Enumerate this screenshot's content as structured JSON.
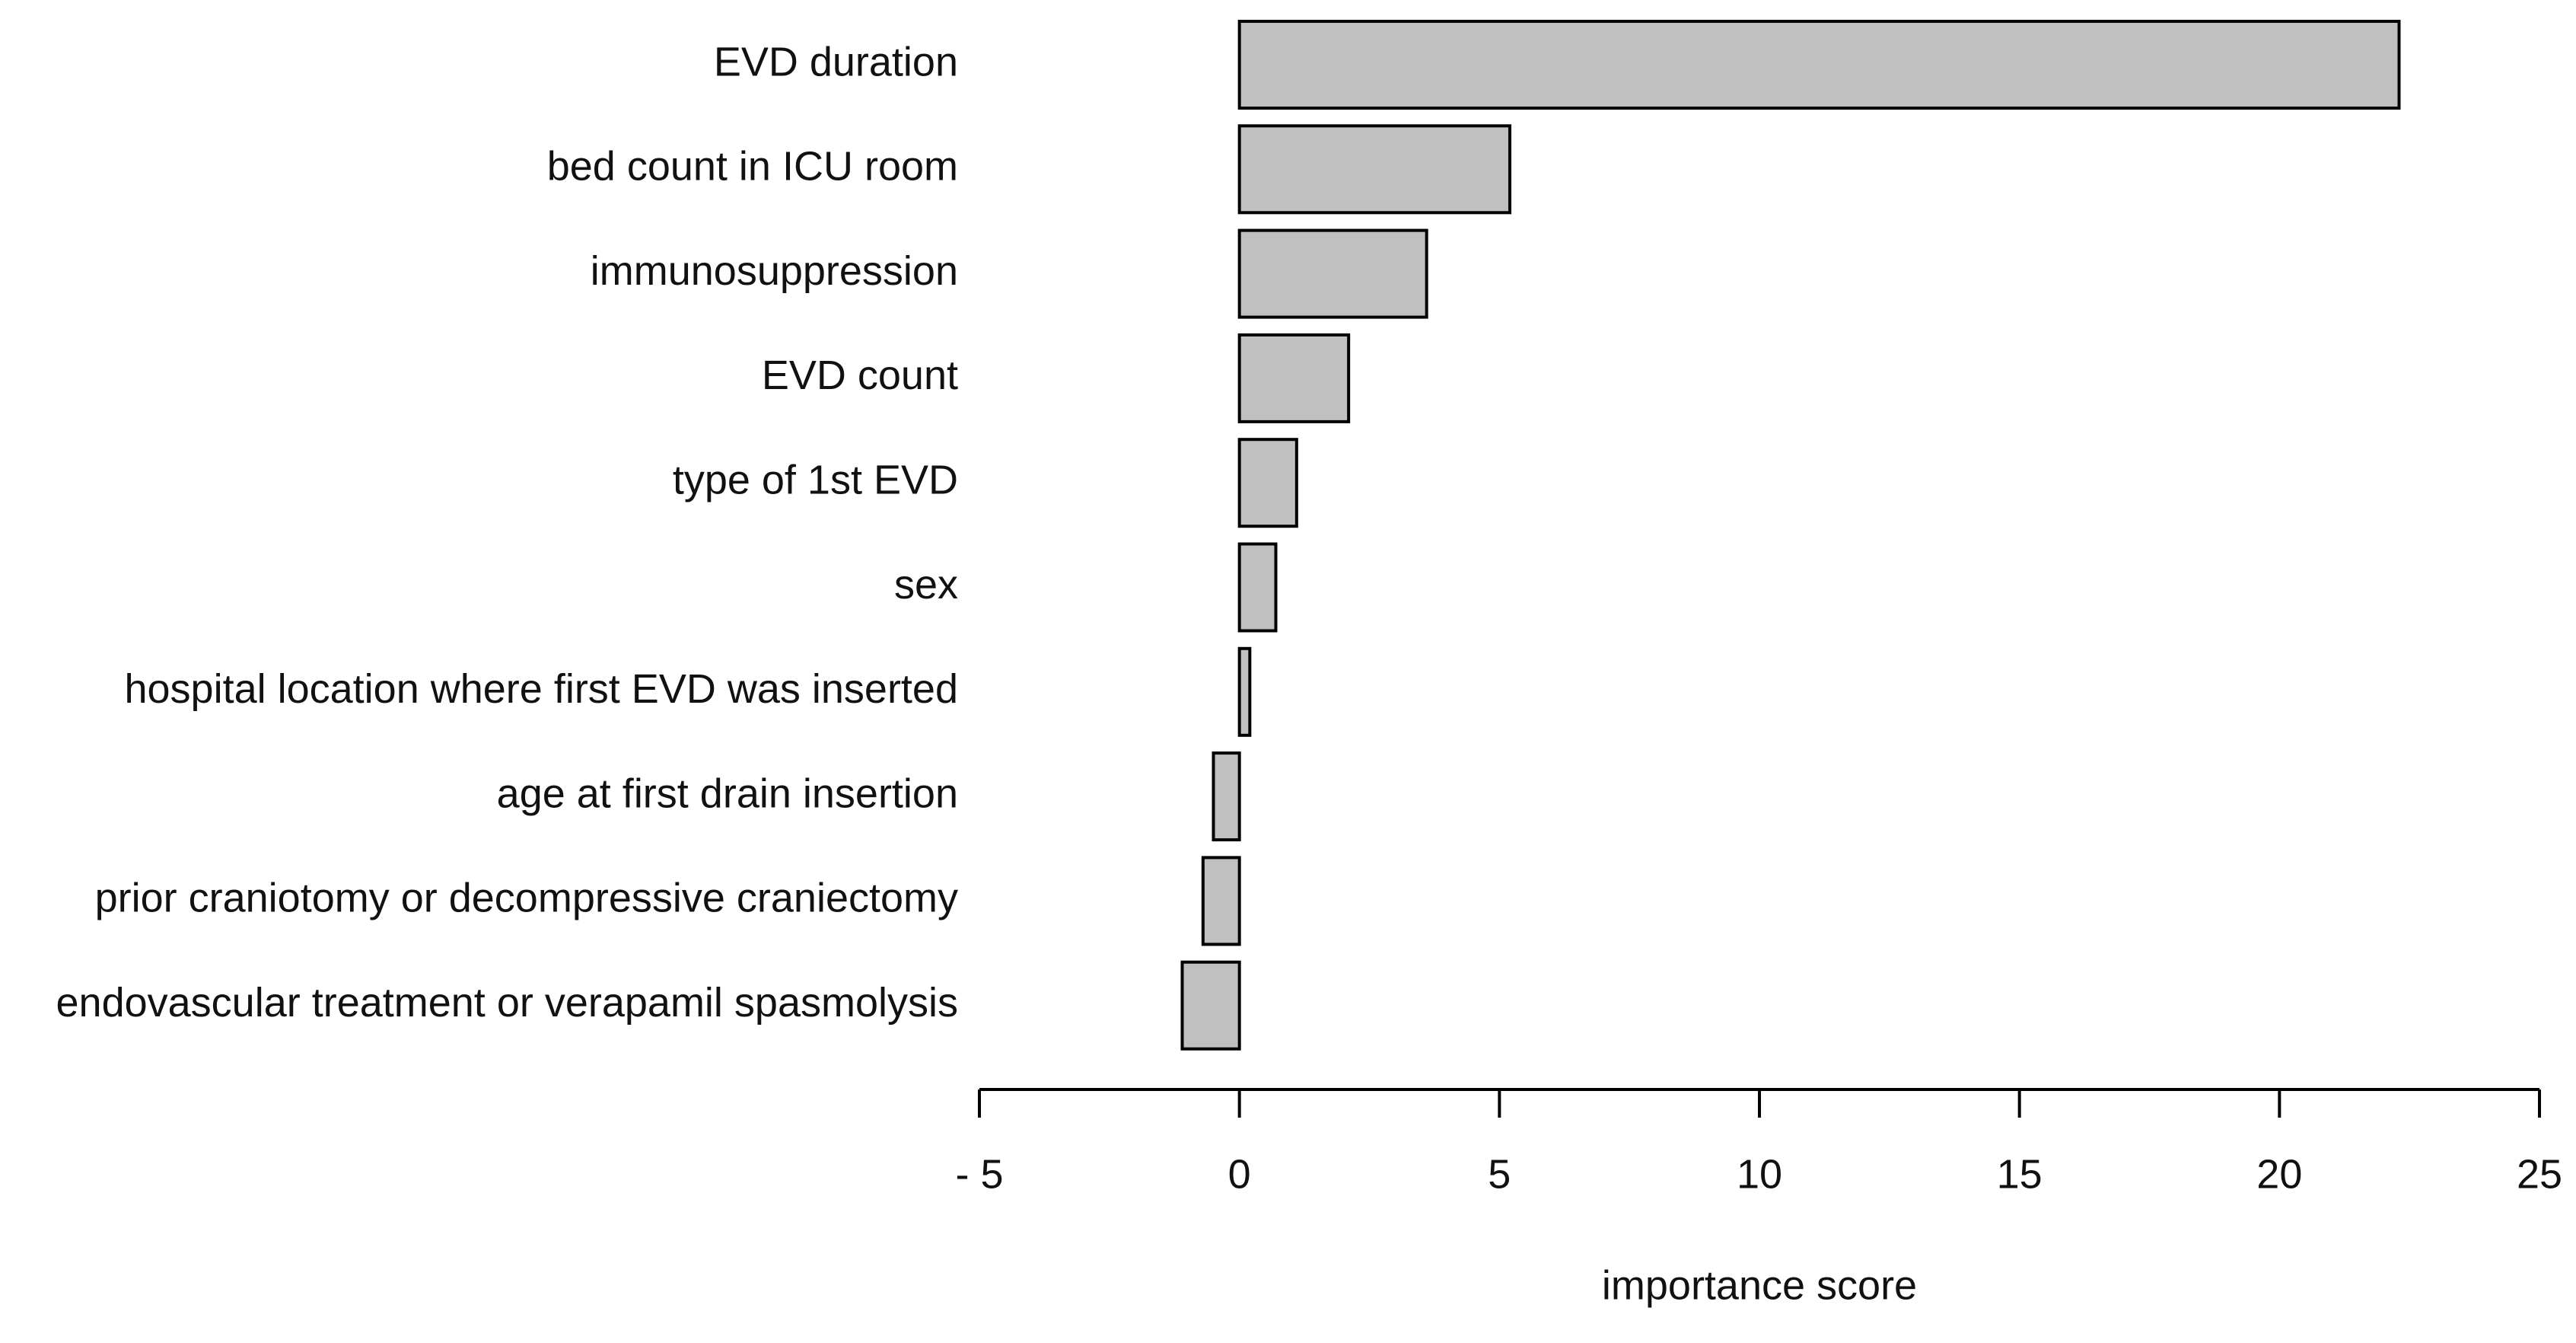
{
  "chart_data": {
    "type": "barh",
    "x_label": "importance score",
    "categories": [
      "EVD duration",
      "bed count in ICU room",
      "immunosuppression",
      "EVD count",
      "type of 1st EVD",
      "sex",
      "hospital location where first EVD was inserted",
      "age at first drain insertion",
      "prior craniotomy or decompressive craniectomy",
      "endovascular treatment or verapamil spasmolysis"
    ],
    "values": [
      22.3,
      5.2,
      3.6,
      2.1,
      1.1,
      0.7,
      0.2,
      -0.5,
      -0.7,
      -1.1
    ],
    "color": "#c0c0c0",
    "xlim": [
      -5,
      25
    ],
    "xticks": [
      {
        "value": -5,
        "label": "- 5"
      },
      0,
      5,
      10,
      15,
      20,
      25
    ]
  }
}
